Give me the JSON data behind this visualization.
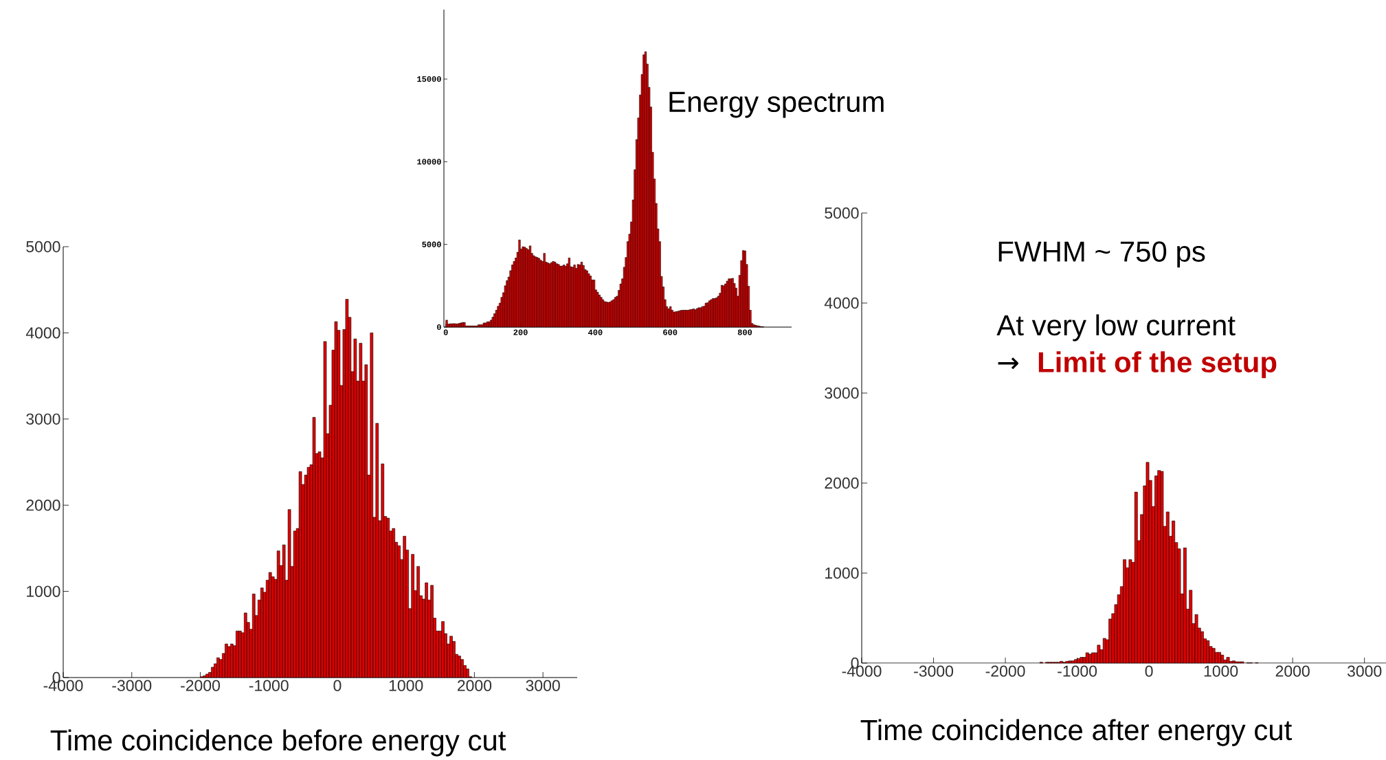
{
  "chart_data": [
    {
      "type": "histogram",
      "color": "#e00000",
      "xlabel": "Time coincidence before energy cut",
      "xlim": [
        -4000,
        3500
      ],
      "ylim": [
        0,
        5000
      ],
      "xticks": [
        -4000,
        -3000,
        -2000,
        -1000,
        0,
        1000,
        2000,
        3000
      ],
      "yticks": [
        0,
        1000,
        2000,
        3000,
        4000,
        5000
      ],
      "bins": [
        -2000,
        -1960,
        -1920,
        -1880,
        -1840,
        -1800,
        -1760,
        -1720,
        -1680,
        -1640,
        -1600,
        -1560,
        -1520,
        -1480,
        -1440,
        -1400,
        -1360,
        -1320,
        -1280,
        -1240,
        -1200,
        -1160,
        -1120,
        -1080,
        -1040,
        -1000,
        -960,
        -920,
        -880,
        -840,
        -800,
        -760,
        -720,
        -680,
        -640,
        -600,
        -560,
        -520,
        -480,
        -440,
        -400,
        -360,
        -320,
        -280,
        -240,
        -200,
        -160,
        -120,
        -80,
        -40,
        0,
        40,
        80,
        120,
        160,
        200,
        240,
        280,
        320,
        360,
        400,
        440,
        480,
        520,
        560,
        600,
        640,
        680,
        720,
        760,
        800,
        840,
        880,
        920,
        960,
        1000,
        1040,
        1080,
        1120,
        1160,
        1200,
        1240,
        1280,
        1320,
        1360,
        1400,
        1440,
        1480,
        1520,
        1560,
        1600,
        1640,
        1680,
        1720,
        1760,
        1800,
        1840,
        1880,
        1920,
        1960,
        2000
      ],
      "values": [
        10,
        20,
        40,
        60,
        120,
        160,
        230,
        210,
        280,
        390,
        360,
        390,
        370,
        540,
        540,
        520,
        750,
        640,
        560,
        970,
        720,
        900,
        1040,
        990,
        1130,
        1220,
        1170,
        1140,
        1470,
        1300,
        1540,
        1130,
        1950,
        1290,
        1700,
        1730,
        2390,
        2240,
        2350,
        2440,
        2470,
        3020,
        2600,
        2620,
        2550,
        3900,
        2830,
        3160,
        3800,
        4130,
        4030,
        3390,
        4040,
        4390,
        4180,
        3550,
        3930,
        3440,
        3880,
        3440,
        3630,
        2350,
        4000,
        1860,
        2950,
        1820,
        2480,
        1870,
        1850,
        1700,
        1730,
        1570,
        1530,
        1370,
        1640,
        1480,
        800,
        1430,
        1010,
        1290,
        950,
        910,
        1100,
        900,
        1070,
        690,
        540,
        540,
        650,
        510,
        390,
        480,
        420,
        270,
        250,
        210,
        140,
        100,
        10,
        0
      ]
    },
    {
      "type": "histogram",
      "color": "#e00000",
      "annotations": [
        "Energy spectrum"
      ],
      "xlim": [
        -5,
        925
      ],
      "ylim": [
        0,
        19200
      ],
      "xticks": [
        0,
        200,
        400,
        600,
        800
      ],
      "yticks": [
        0,
        5000,
        10000,
        15000
      ],
      "bins": [
        0,
        4.75,
        9.5,
        14.25,
        19,
        23.75,
        28.5,
        33.25,
        38,
        42.75,
        47.5,
        52.25,
        57,
        61.75,
        66.5,
        71.25,
        76,
        80.75,
        85.5,
        90.25,
        95,
        99.75,
        104.5,
        109.25,
        114,
        118.75,
        123.5,
        128.25,
        133,
        137.75,
        142.5,
        147.25,
        152,
        156.75,
        161.5,
        166.25,
        171,
        175.75,
        180.5,
        185.25,
        190,
        194.75,
        199.5,
        204.25,
        209,
        213.75,
        218.5,
        223.25,
        228,
        232.75,
        237.5,
        242.25,
        247,
        251.75,
        256.5,
        261.25,
        266,
        270.75,
        275.5,
        280.25,
        285,
        289.75,
        294.5,
        299.25,
        304,
        308.75,
        313.5,
        318.25,
        323,
        327.75,
        332.5,
        337.25,
        342,
        346.75,
        351.5,
        356.25,
        361,
        365.75,
        370.5,
        375.25,
        380,
        384.75,
        389.5,
        394.25,
        399,
        403.75,
        408.5,
        413.25,
        418,
        422.75,
        427.5,
        432.25,
        437,
        441.75,
        446.5,
        451.25,
        456,
        460.75,
        465.5,
        470.25,
        475,
        479.75,
        484.5,
        489.25,
        494,
        498.75,
        503.5,
        508.25,
        513,
        517.75,
        522.5,
        527.25,
        532,
        536.75,
        541.5,
        546.25,
        551,
        555.75,
        560.5,
        565.25,
        570,
        574.75,
        579.5,
        584.25,
        589,
        593.75,
        598.5,
        603.25,
        608,
        612.75,
        617.5,
        622.25,
        627,
        631.75,
        636.5,
        641.25,
        646,
        650.75,
        655.5,
        660.25,
        665,
        669.75,
        674.5,
        679.25,
        684,
        688.75,
        693.5,
        698.25,
        703,
        707.75,
        712.5,
        717.25,
        722,
        726.75,
        731.5,
        736.25,
        741,
        745.75,
        750.5,
        755.25,
        760,
        764.75,
        769.5,
        774.25,
        779,
        783.75,
        788.5,
        793.25,
        798,
        802.75,
        807.5,
        812.25,
        817,
        821.75,
        826.5,
        831.25,
        836,
        840.75,
        845.5,
        850.25
      ],
      "values": [
        420,
        180,
        200,
        200,
        210,
        200,
        190,
        220,
        250,
        280,
        280,
        70,
        70,
        70,
        70,
        70,
        70,
        70,
        140,
        140,
        140,
        250,
        250,
        320,
        320,
        420,
        600,
        810,
        1020,
        1260,
        1450,
        1800,
        2080,
        2500,
        2810,
        3030,
        3410,
        3760,
        3970,
        4180,
        4530,
        5270,
        4720,
        4860,
        4830,
        4750,
        4680,
        4910,
        4460,
        4320,
        4250,
        4210,
        4160,
        4040,
        3970,
        4460,
        3930,
        3880,
        3830,
        3900,
        3970,
        3930,
        3830,
        3790,
        3690,
        3690,
        3760,
        3690,
        3830,
        4180,
        3650,
        3620,
        3760,
        3550,
        3790,
        3760,
        3930,
        3730,
        3480,
        3410,
        3230,
        3090,
        2850,
        2850,
        2250,
        2110,
        1940,
        1800,
        1660,
        1540,
        1520,
        1490,
        1520,
        1590,
        1660,
        1800,
        1870,
        2220,
        2610,
        2920,
        3620,
        4210,
        5170,
        5620,
        6360,
        7690,
        9520,
        11340,
        12650,
        14040,
        15280,
        16470,
        16650,
        15910,
        14500,
        13310,
        10570,
        8960,
        7480,
        5940,
        5170,
        3060,
        2430,
        1660,
        1240,
        1100,
        1240,
        1020,
        910,
        930,
        950,
        980,
        1010,
        1020,
        1020,
        1020,
        1020,
        1050,
        1070,
        1100,
        1050,
        1120,
        1170,
        1170,
        1240,
        1260,
        1450,
        1470,
        1590,
        1660,
        1730,
        1730,
        1770,
        1870,
        2050,
        2530,
        2500,
        2610,
        2780,
        2920,
        2920,
        2950,
        2640,
        2360,
        1870,
        3130,
        4020,
        4630,
        4610,
        3790,
        2470,
        1020,
        220,
        140,
        110,
        80,
        60,
        30,
        30
      ]
    },
    {
      "type": "histogram",
      "color": "#e00000",
      "xlabel": "Time coincidence after energy cut",
      "annotations": [
        "FWHM ~ 750 ps",
        "At very low current",
        "→",
        "Limit of the setup"
      ],
      "xlim": [
        -4000,
        3300
      ],
      "ylim": [
        0,
        5000
      ],
      "xticks": [
        -4000,
        -3000,
        -2000,
        -1000,
        0,
        1000,
        2000,
        3000
      ],
      "yticks": [
        0,
        1000,
        2000,
        3000,
        4000,
        5000
      ],
      "bins": [
        -1560,
        -1520,
        -1480,
        -1440,
        -1400,
        -1360,
        -1320,
        -1280,
        -1240,
        -1200,
        -1160,
        -1120,
        -1080,
        -1040,
        -1000,
        -960,
        -920,
        -880,
        -840,
        -800,
        -760,
        -720,
        -680,
        -640,
        -600,
        -560,
        -520,
        -480,
        -440,
        -400,
        -360,
        -320,
        -280,
        -240,
        -200,
        -160,
        -120,
        -80,
        -40,
        0,
        40,
        80,
        120,
        160,
        200,
        240,
        280,
        320,
        360,
        400,
        440,
        480,
        520,
        560,
        600,
        640,
        680,
        720,
        760,
        800,
        840,
        880,
        920,
        960,
        1000,
        1040,
        1080,
        1120,
        1160,
        1200,
        1240,
        1280,
        1320,
        1360,
        1400,
        1440,
        1480,
        1520
      ],
      "values": [
        0,
        10,
        0,
        10,
        10,
        10,
        10,
        10,
        20,
        10,
        20,
        25,
        25,
        40,
        50,
        65,
        65,
        115,
        100,
        115,
        115,
        200,
        150,
        275,
        260,
        490,
        550,
        650,
        760,
        850,
        1150,
        1060,
        1150,
        1120,
        1900,
        1360,
        1650,
        1970,
        2230,
        2030,
        1740,
        2080,
        2140,
        2130,
        1520,
        1680,
        1410,
        1580,
        1340,
        1270,
        770,
        1280,
        600,
        810,
        440,
        540,
        390,
        350,
        270,
        250,
        185,
        165,
        120,
        120,
        90,
        35,
        65,
        20,
        25,
        15,
        15,
        15,
        0,
        5,
        5,
        0,
        5
      ]
    }
  ]
}
